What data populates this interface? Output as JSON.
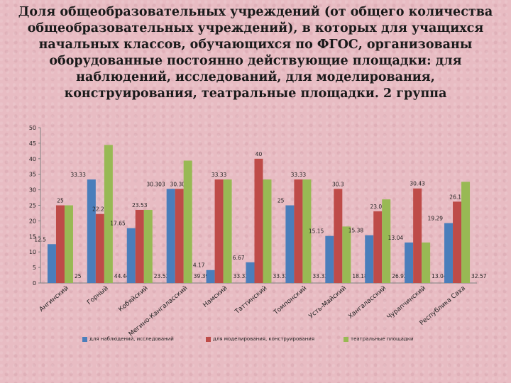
{
  "title": "Доля общеобразовательных учреждений (от общего количества общеобразовательных учреждений), в которых для учащихся начальных классов, обучающихся по ФГОС, организованы оборудованные постоянно действующие площадки: для наблюдений, исследований, для моделирования, конструирования, театральные площадки. 2 группа",
  "chart_data": {
    "type": "bar",
    "title": "Доля общеобразовательных учреждений (от общего количества общеобразовательных учреждений), в которых для учащихся начальных классов, обучающихся по ФГОС, организованы оборудованные постоянно действующие площадки: для наблюдений, исследований, для моделирования, конструирования, театральные площадки. 2 группа",
    "categories": [
      "Ангинский",
      "Горный",
      "Кобяйский",
      "Мегино-Кангаласский",
      "Намский",
      "Таттинский",
      "Томпонский",
      "Усть-Майский",
      "Хангаласский",
      "Чурапчинский",
      "Республика Саха"
    ],
    "series": [
      {
        "name": "для наблюдений, исследований",
        "color": "#4a7ebb",
        "values": [
          12.5,
          33.33,
          17.65,
          30.303,
          4.17,
          6.67,
          25,
          15.15,
          15.38,
          13.04,
          19.29
        ],
        "labels": [
          "12.5",
          "33.33",
          "17.65",
          "30.303",
          "4.17",
          "6.67",
          "25",
          "15.15",
          "15.38",
          "13.04",
          "19.29"
        ]
      },
      {
        "name": "для моделирования, конструирования",
        "color": "#be4b48",
        "values": [
          25,
          22.22,
          23.53,
          30.303,
          33.33,
          40,
          33.33,
          30.3,
          23.08,
          30.43,
          26.19
        ],
        "labels": [
          "25",
          "22.22",
          "23.53",
          "30.303",
          "33.33",
          "40",
          "33.33",
          "30.3",
          "23.08",
          "30.43",
          "26.19"
        ]
      },
      {
        "name": "театральные площадки",
        "color": "#98b954",
        "values": [
          25,
          44.44,
          23.53,
          39.39,
          33.33,
          33.33,
          33.33,
          18.18,
          26.92,
          13.04,
          32.57
        ],
        "labels": [
          "25",
          "44.44",
          "23.53",
          "39.39",
          "33.33",
          "33.33",
          "33.33",
          "18.18",
          "26.92",
          "13.04",
          "32.57"
        ]
      }
    ],
    "ylim": [
      0,
      50
    ],
    "yticks": [
      "0",
      "5",
      "10",
      "15",
      "20",
      "25",
      "30",
      "35",
      "40",
      "45",
      "50"
    ],
    "grid": false,
    "legend": "bottom"
  }
}
